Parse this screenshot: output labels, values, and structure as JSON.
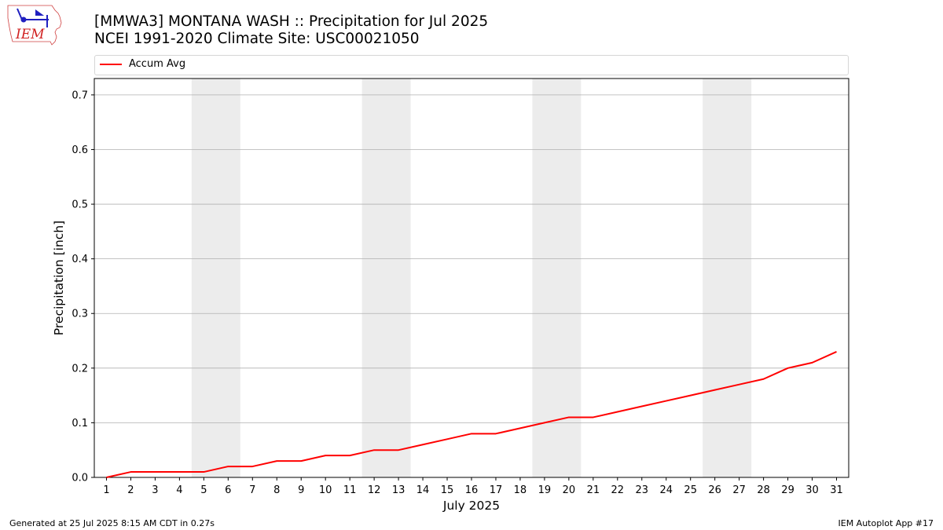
{
  "header": {
    "logo_text": "IEM",
    "title_line1": "[MMWA3] MONTANA WASH :: Precipitation for Jul 2025",
    "title_line2": "NCEI 1991-2020 Climate Site: USC00021050"
  },
  "footer": {
    "generated": "Generated at 25 Jul 2025 8:15 AM CDT in 0.27s",
    "app": "IEM Autoplot App #17"
  },
  "chart_data": {
    "type": "line",
    "title": "",
    "xlabel": "July 2025",
    "ylabel": "Precipitation [inch]",
    "xlim": [
      0.5,
      31.5
    ],
    "ylim": [
      0,
      0.73
    ],
    "x": [
      1,
      2,
      3,
      4,
      5,
      6,
      7,
      8,
      9,
      10,
      11,
      12,
      13,
      14,
      15,
      16,
      17,
      18,
      19,
      20,
      21,
      22,
      23,
      24,
      25,
      26,
      27,
      28,
      29,
      30,
      31
    ],
    "x_tick_labels": [
      "1",
      "2",
      "3",
      "4",
      "5",
      "6",
      "7",
      "8",
      "9",
      "10",
      "11",
      "12",
      "13",
      "14",
      "15",
      "16",
      "17",
      "18",
      "19",
      "20",
      "21",
      "22",
      "23",
      "24",
      "25",
      "26",
      "27",
      "28",
      "29",
      "30",
      "31"
    ],
    "y_ticks": [
      0.0,
      0.1,
      0.2,
      0.3,
      0.4,
      0.5,
      0.6,
      0.7
    ],
    "y_tick_labels": [
      "0.0",
      "0.1",
      "0.2",
      "0.3",
      "0.4",
      "0.5",
      "0.6",
      "0.7"
    ],
    "grid": "horizontal",
    "legend_position": "top",
    "weekend_shading": [
      [
        4.5,
        6.5
      ],
      [
        11.5,
        13.5
      ],
      [
        18.5,
        20.5
      ],
      [
        25.5,
        27.5
      ]
    ],
    "series": [
      {
        "name": "Accum Avg",
        "color": "#ff0000",
        "values": [
          0.0,
          0.01,
          0.01,
          0.01,
          0.01,
          0.02,
          0.02,
          0.03,
          0.03,
          0.04,
          0.04,
          0.05,
          0.05,
          0.06,
          0.07,
          0.08,
          0.08,
          0.09,
          0.1,
          0.11,
          0.11,
          0.12,
          0.13,
          0.14,
          0.15,
          0.16,
          0.17,
          0.18,
          0.2,
          0.21,
          0.23
        ]
      }
    ],
    "colors": {
      "grid": "#b0b0b0",
      "shade": "#ececec"
    }
  }
}
